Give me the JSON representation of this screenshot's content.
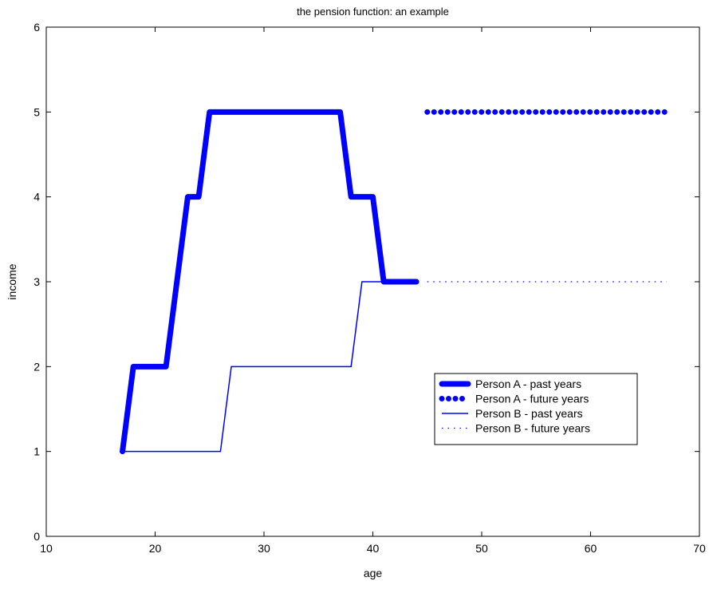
{
  "chart_data": {
    "type": "line",
    "title": "the pension function: an example",
    "xlabel": "age",
    "ylabel": "income",
    "xlim": [
      10,
      70
    ],
    "ylim": [
      0,
      6
    ],
    "xticks": [
      10,
      20,
      30,
      40,
      50,
      60,
      70
    ],
    "yticks": [
      0,
      1,
      2,
      3,
      4,
      5,
      6
    ],
    "grid": false,
    "legend_position": "lower-right",
    "series": [
      {
        "name": "Person A - past years",
        "style": "thick-solid",
        "color": "#0000ff",
        "x": [
          17,
          18,
          21,
          23,
          24,
          25,
          37,
          38,
          40,
          41,
          44
        ],
        "y": [
          1,
          2,
          2,
          4,
          4,
          5,
          5,
          4,
          4,
          3,
          3
        ]
      },
      {
        "name": "Person A - future years",
        "style": "thick-dots",
        "color": "#0000ff",
        "x": [
          45,
          67
        ],
        "y": [
          5,
          5
        ]
      },
      {
        "name": "Person B - past years",
        "style": "thin-solid",
        "color": "#0000ff",
        "x": [
          17,
          26,
          27,
          38,
          39,
          44
        ],
        "y": [
          1,
          1,
          2,
          2,
          3,
          3
        ]
      },
      {
        "name": "Person B - future years",
        "style": "thin-dots",
        "color": "#0000ff",
        "x": [
          45,
          67
        ],
        "y": [
          3,
          3
        ]
      }
    ]
  }
}
